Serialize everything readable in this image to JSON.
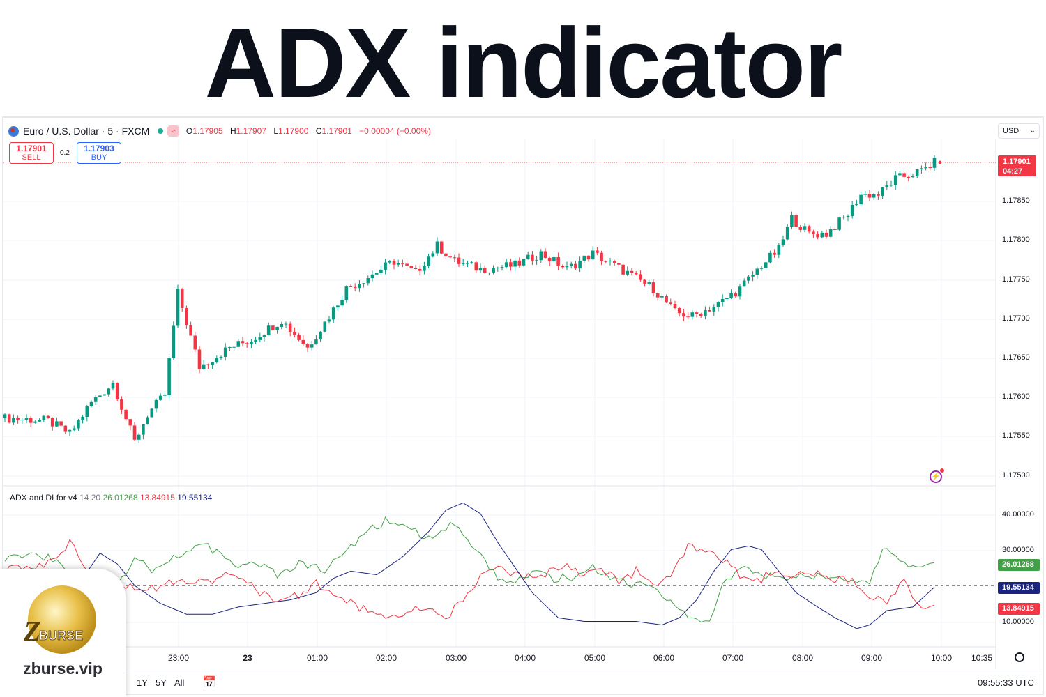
{
  "page_title": "ADX indicator",
  "symbol": {
    "name": "Euro / U.S. Dollar · 5 · FXCM",
    "menu_label": "≈",
    "ohlc": {
      "o_label": "O",
      "o": "1.17905",
      "h_label": "H",
      "h": "1.17907",
      "l_label": "L",
      "l": "1.17900",
      "c_label": "C",
      "c": "1.17901",
      "change": "−0.00004 (−0.00%)"
    }
  },
  "trade": {
    "sell_price": "1.17901",
    "sell_label": "SELL",
    "spread": "0.2",
    "buy_price": "1.17903",
    "buy_label": "BUY"
  },
  "currency_select": "USD",
  "price_axis": {
    "last_price": "1.17901",
    "countdown": "04:27",
    "labels": [
      "1.17850",
      "1.17800",
      "1.17750",
      "1.17700",
      "1.17650",
      "1.17600",
      "1.17550",
      "1.17500"
    ]
  },
  "indicator": {
    "name": "ADX and DI for v4",
    "params": "14 20",
    "plus_di": "26.01268",
    "minus_di": "13.84915",
    "adx": "19.55134",
    "axis_labels": [
      "40.00000",
      "30.00000",
      "10.00000"
    ]
  },
  "time_axis": [
    "23:00",
    "23",
    "01:00",
    "02:00",
    "03:00",
    "04:00",
    "05:00",
    "06:00",
    "07:00",
    "08:00",
    "09:00",
    "10:00",
    "10:35"
  ],
  "bottom_bar": {
    "ranges": [
      "1Y",
      "5Y",
      "All"
    ],
    "clock": "09:55:33 UTC"
  },
  "logo": {
    "letter": "Z",
    "word": "BURSE",
    "url": "zburse.vip"
  },
  "colors": {
    "up": "#089981",
    "down": "#f23645",
    "plus_di": "#43a047",
    "minus_di": "#f23645",
    "adx": "#1a237e",
    "brand_gold": "#d4a62a"
  },
  "chart_data": [
    {
      "type": "candlestick",
      "title": "Euro / U.S. Dollar · 5 · FXCM",
      "x_ticks": [
        "23:00",
        "23",
        "01:00",
        "02:00",
        "03:00",
        "04:00",
        "05:00",
        "06:00",
        "07:00",
        "08:00",
        "09:00",
        "10:00"
      ],
      "ylim": [
        1.1749,
        1.1792
      ],
      "y_ticks": [
        1.1785,
        1.178,
        1.1775,
        1.177,
        1.1765,
        1.176,
        1.1755,
        1.175
      ],
      "last": 1.17901,
      "close_path": [
        [
          0,
          1.17575
        ],
        [
          10,
          1.17572
        ],
        [
          15,
          1.17555
        ],
        [
          20,
          1.17595
        ],
        [
          25,
          1.1762
        ],
        [
          30,
          1.17545
        ],
        [
          33,
          1.1758
        ],
        [
          37,
          1.17605
        ],
        [
          40,
          1.17735
        ],
        [
          45,
          1.1764
        ],
        [
          52,
          1.17665
        ],
        [
          57,
          1.17675
        ],
        [
          64,
          1.177
        ],
        [
          70,
          1.17665
        ],
        [
          75,
          1.17705
        ],
        [
          79,
          1.1774
        ],
        [
          84,
          1.17755
        ],
        [
          90,
          1.17775
        ],
        [
          95,
          1.1776
        ],
        [
          100,
          1.17795
        ],
        [
          104,
          1.17775
        ],
        [
          110,
          1.17765
        ],
        [
          118,
          1.1777
        ],
        [
          124,
          1.17785
        ],
        [
          130,
          1.17765
        ],
        [
          136,
          1.17785
        ],
        [
          144,
          1.1776
        ],
        [
          150,
          1.1774
        ],
        [
          155,
          1.1771
        ],
        [
          159,
          1.17705
        ],
        [
          165,
          1.1772
        ],
        [
          170,
          1.1774
        ],
        [
          175,
          1.1777
        ],
        [
          179,
          1.1779
        ],
        [
          182,
          1.1783
        ],
        [
          186,
          1.1781
        ],
        [
          190,
          1.1781
        ],
        [
          195,
          1.17835
        ],
        [
          198,
          1.1786
        ],
        [
          202,
          1.1786
        ],
        [
          206,
          1.1788
        ],
        [
          212,
          1.1789
        ],
        [
          215,
          1.17901
        ]
      ]
    },
    {
      "type": "line",
      "title": "ADX and DI for v4",
      "ylim": [
        5,
        45
      ],
      "y_ticks": [
        40,
        30,
        10
      ],
      "threshold": 20,
      "series": [
        {
          "name": "+DI",
          "values_path": [
            [
              0,
              28
            ],
            [
              8,
              29
            ],
            [
              16,
              23
            ],
            [
              22,
              21
            ],
            [
              26,
              21
            ],
            [
              30,
              27
            ],
            [
              35,
              24
            ],
            [
              42,
              30
            ],
            [
              47,
              31
            ],
            [
              52,
              26
            ],
            [
              58,
              26
            ],
            [
              63,
              23
            ],
            [
              68,
              26
            ],
            [
              74,
              24
            ],
            [
              79,
              30
            ],
            [
              84,
              35
            ],
            [
              88,
              38
            ],
            [
              93,
              37
            ],
            [
              97,
              33
            ],
            [
              100,
              35
            ],
            [
              104,
              37
            ],
            [
              106,
              33
            ],
            [
              110,
              28
            ],
            [
              114,
              22
            ],
            [
              118,
              21
            ],
            [
              122,
              24
            ],
            [
              126,
              22
            ],
            [
              132,
              22
            ],
            [
              136,
              25
            ],
            [
              140,
              22
            ],
            [
              144,
              21
            ],
            [
              150,
              19
            ],
            [
              154,
              16
            ],
            [
              158,
              11
            ],
            [
              163,
              9
            ],
            [
              166,
              21
            ],
            [
              172,
              25
            ],
            [
              178,
              22
            ],
            [
              182,
              23
            ],
            [
              186,
              22
            ],
            [
              190,
              23
            ],
            [
              196,
              21
            ],
            [
              200,
              20
            ],
            [
              203,
              30
            ],
            [
              207,
              28
            ],
            [
              211,
              24
            ],
            [
              215,
              26.01
            ]
          ]
        },
        {
          "name": "−DI",
          "values_path": [
            [
              0,
              24
            ],
            [
              10,
              26
            ],
            [
              15,
              32
            ],
            [
              22,
              20
            ],
            [
              28,
              20
            ],
            [
              34,
              19
            ],
            [
              40,
              22
            ],
            [
              46,
              21
            ],
            [
              52,
              23
            ],
            [
              58,
              19
            ],
            [
              63,
              16
            ],
            [
              68,
              17
            ],
            [
              72,
              21
            ],
            [
              76,
              17
            ],
            [
              82,
              14
            ],
            [
              86,
              12
            ],
            [
              90,
              11
            ],
            [
              94,
              13
            ],
            [
              98,
              14
            ],
            [
              102,
              11
            ],
            [
              106,
              16
            ],
            [
              110,
              22
            ],
            [
              114,
              25
            ],
            [
              118,
              23
            ],
            [
              122,
              22
            ],
            [
              126,
              24
            ],
            [
              130,
              26
            ],
            [
              134,
              23
            ],
            [
              138,
              25
            ],
            [
              142,
              21
            ],
            [
              146,
              24
            ],
            [
              150,
              20
            ],
            [
              154,
              22
            ],
            [
              158,
              31
            ],
            [
              162,
              29
            ],
            [
              166,
              27
            ],
            [
              170,
              23
            ],
            [
              174,
              21
            ],
            [
              178,
              24
            ],
            [
              182,
              22
            ],
            [
              186,
              24
            ],
            [
              190,
              22
            ],
            [
              196,
              21
            ],
            [
              200,
              17
            ],
            [
              204,
              16
            ],
            [
              208,
              21
            ],
            [
              212,
              14
            ],
            [
              215,
              13.85
            ]
          ]
        },
        {
          "name": "ADX",
          "values_path": [
            [
              0,
              24
            ],
            [
              6,
              22
            ],
            [
              12,
              20
            ],
            [
              18,
              22
            ],
            [
              22,
              29
            ],
            [
              26,
              26
            ],
            [
              30,
              20
            ],
            [
              36,
              15
            ],
            [
              42,
              12
            ],
            [
              48,
              12
            ],
            [
              54,
              14
            ],
            [
              60,
              15
            ],
            [
              66,
              16
            ],
            [
              72,
              18
            ],
            [
              76,
              22
            ],
            [
              80,
              24
            ],
            [
              86,
              23
            ],
            [
              92,
              28
            ],
            [
              98,
              35
            ],
            [
              102,
              41
            ],
            [
              106,
              43
            ],
            [
              110,
              40
            ],
            [
              114,
              32
            ],
            [
              118,
              25
            ],
            [
              122,
              18
            ],
            [
              128,
              11
            ],
            [
              134,
              10
            ],
            [
              140,
              10
            ],
            [
              146,
              10
            ],
            [
              152,
              9
            ],
            [
              156,
              11
            ],
            [
              160,
              16
            ],
            [
              164,
              24
            ],
            [
              168,
              30
            ],
            [
              172,
              31
            ],
            [
              175,
              30
            ],
            [
              179,
              24
            ],
            [
              183,
              18
            ],
            [
              188,
              14
            ],
            [
              192,
              11
            ],
            [
              197,
              8
            ],
            [
              200,
              9
            ],
            [
              204,
              13
            ],
            [
              210,
              14
            ],
            [
              215,
              19.55
            ]
          ]
        }
      ]
    }
  ]
}
